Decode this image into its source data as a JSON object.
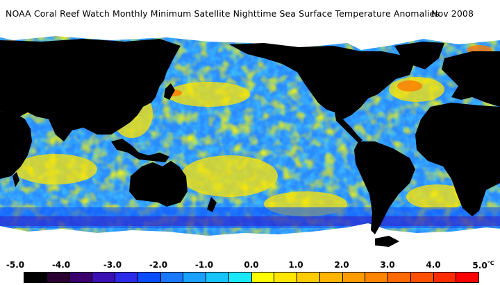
{
  "title": {
    "text": "NOAA Coral Reef Watch Monthly Minimum Satellite Nighttime Sea Surface Temperature Anomalies",
    "date": "Nov 2008"
  },
  "legend": {
    "ticks": [
      "-5.0",
      "-4.0",
      "-3.0",
      "-2.0",
      "-1.0",
      "0.0",
      "1.0",
      "2.0",
      "3.0",
      "4.0",
      "5.0"
    ],
    "unit": "°C",
    "colors": [
      "#000000",
      "#2a0033",
      "#3c006e",
      "#3a10b4",
      "#2a2ae8",
      "#0a4cff",
      "#1a78ff",
      "#1aa0ff",
      "#18c4ff",
      "#1ae8ff",
      "#ffff00",
      "#ffe600",
      "#ffcc00",
      "#ffb400",
      "#ff9c00",
      "#ff8400",
      "#ff6a00",
      "#ff5000",
      "#ff2c00",
      "#ff0000"
    ]
  },
  "map": {
    "land_color": "#000000",
    "ice_color": "#ffffff",
    "ocean_cool": "#2aa8ff",
    "ocean_warm": "#ffe600"
  }
}
